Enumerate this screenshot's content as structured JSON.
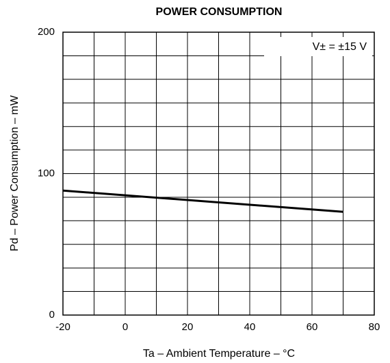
{
  "chart_data": {
    "type": "line",
    "title": "POWER CONSUMPTION",
    "xlabel": "Ta – Ambient Temperature – °C",
    "ylabel": "Pd – Power Consumption – mW",
    "annotation": "V± = ±15 V",
    "series": [
      {
        "name": "V± = ±15 V",
        "color": "#000000",
        "x": [
          -20,
          70
        ],
        "values": [
          88,
          73
        ]
      }
    ],
    "xlim": [
      -20,
      80
    ],
    "xticks": [
      -20,
      0,
      20,
      40,
      60,
      80
    ],
    "ylim": [
      0,
      200
    ],
    "yticks": [
      0,
      100,
      200
    ],
    "grid": true,
    "xgrid": [
      -10,
      10,
      30,
      50,
      70
    ],
    "ygrid": [
      16.7,
      33.3,
      50,
      66.7,
      83.3,
      116.7,
      133.3,
      150,
      166.7,
      183.3
    ]
  }
}
